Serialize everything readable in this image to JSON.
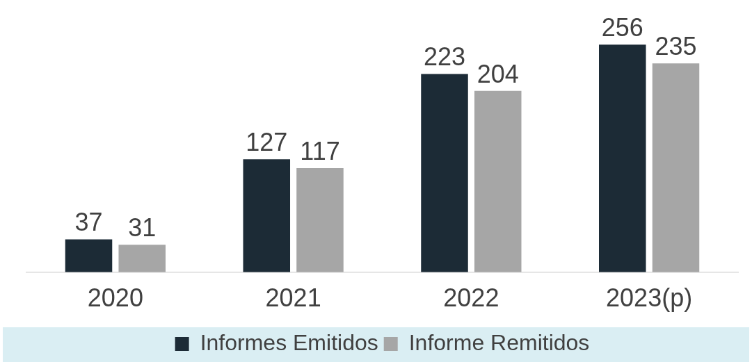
{
  "chart_data": {
    "type": "bar",
    "categories": [
      "2020",
      "2021",
      "2022",
      "2023(p)"
    ],
    "series": [
      {
        "name": "Informes Emitidos",
        "color": "#1c2b36",
        "values": [
          37,
          127,
          223,
          256
        ]
      },
      {
        "name": "Informe Remitidos",
        "color": "#a6a6a6",
        "values": [
          31,
          117,
          204,
          235
        ]
      }
    ],
    "data_labels": true,
    "legend": "bottom",
    "grid": false,
    "tick_labels": "x"
  }
}
